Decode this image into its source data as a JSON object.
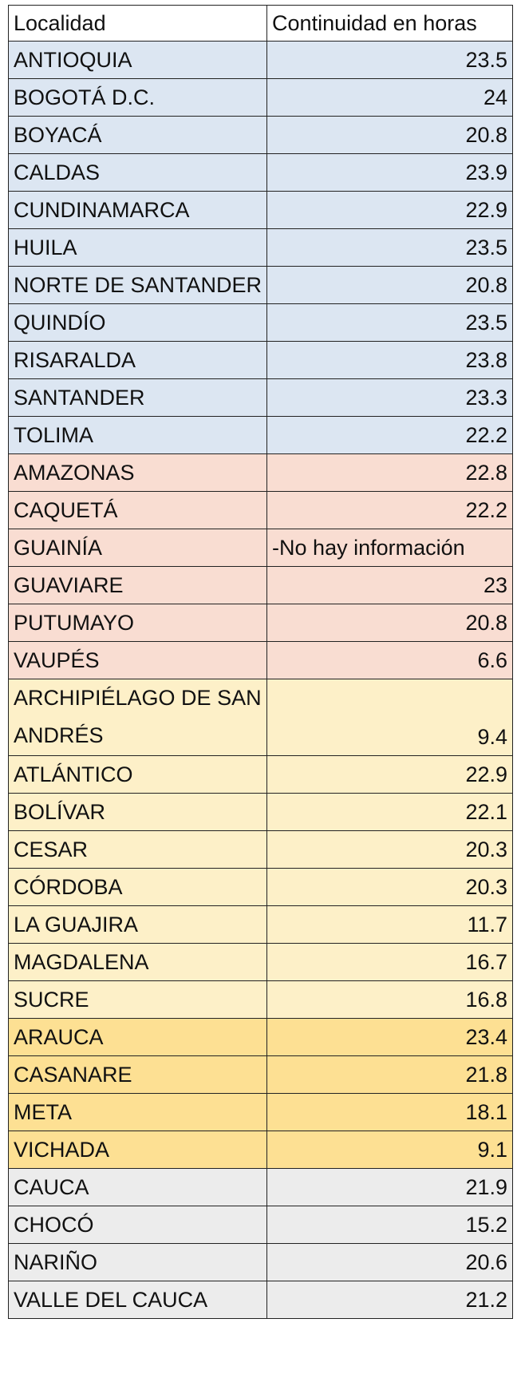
{
  "header": {
    "col_locality": "Localidad",
    "col_continuity": "Continuidad en horas"
  },
  "colors": {
    "andina": "#dce6f2",
    "amazonia": "#f9ddd2",
    "caribe": "#fdf0c8",
    "orinoquia": "#fde093",
    "pacifico": "#ececec"
  },
  "rows": [
    {
      "name": "ANTIOQUIA",
      "value": "23.5",
      "group": "andina"
    },
    {
      "name": "BOGOTÁ D.C.",
      "value": "24",
      "group": "andina"
    },
    {
      "name": "BOYACÁ",
      "value": "20.8",
      "group": "andina"
    },
    {
      "name": "CALDAS",
      "value": "23.9",
      "group": "andina"
    },
    {
      "name": "CUNDINAMARCA",
      "value": "22.9",
      "group": "andina"
    },
    {
      "name": "HUILA",
      "value": "23.5",
      "group": "andina"
    },
    {
      "name": "NORTE DE SANTANDER",
      "value": "20.8",
      "group": "andina"
    },
    {
      "name": "QUINDÍO",
      "value": "23.5",
      "group": "andina"
    },
    {
      "name": "RISARALDA",
      "value": "23.8",
      "group": "andina"
    },
    {
      "name": "SANTANDER",
      "value": "23.3",
      "group": "andina"
    },
    {
      "name": "TOLIMA",
      "value": "22.2",
      "group": "andina"
    },
    {
      "name": "AMAZONAS",
      "value": "22.8",
      "group": "amazonia"
    },
    {
      "name": "CAQUETÁ",
      "value": "22.2",
      "group": "amazonia"
    },
    {
      "name": "GUAINÍA",
      "value": "-No hay información",
      "group": "amazonia",
      "text_value": true
    },
    {
      "name": "GUAVIARE",
      "value": "23",
      "group": "amazonia"
    },
    {
      "name": "PUTUMAYO",
      "value": "20.8",
      "group": "amazonia"
    },
    {
      "name": "VAUPÉS",
      "value": "6.6",
      "group": "amazonia"
    },
    {
      "name": "ARCHIPIÉLAGO DE SAN ANDRÉS",
      "value": "9.4",
      "group": "caribe",
      "wrap": true
    },
    {
      "name": "ATLÁNTICO",
      "value": "22.9",
      "group": "caribe"
    },
    {
      "name": "BOLÍVAR",
      "value": "22.1",
      "group": "caribe"
    },
    {
      "name": "CESAR",
      "value": "20.3",
      "group": "caribe"
    },
    {
      "name": "CÓRDOBA",
      "value": "20.3",
      "group": "caribe"
    },
    {
      "name": "LA GUAJIRA",
      "value": "11.7",
      "group": "caribe"
    },
    {
      "name": "MAGDALENA",
      "value": "16.7",
      "group": "caribe"
    },
    {
      "name": "SUCRE",
      "value": "16.8",
      "group": "caribe"
    },
    {
      "name": "ARAUCA",
      "value": "23.4",
      "group": "orinoquia"
    },
    {
      "name": "CASANARE",
      "value": "21.8",
      "group": "orinoquia"
    },
    {
      "name": "META",
      "value": "18.1",
      "group": "orinoquia"
    },
    {
      "name": "VICHADA",
      "value": "9.1",
      "group": "orinoquia"
    },
    {
      "name": "CAUCA",
      "value": "21.9",
      "group": "pacifico"
    },
    {
      "name": "CHOCÓ",
      "value": "15.2",
      "group": "pacifico"
    },
    {
      "name": "NARIÑO",
      "value": "20.6",
      "group": "pacifico"
    },
    {
      "name": "VALLE DEL CAUCA",
      "value": "21.2",
      "group": "pacifico"
    }
  ]
}
